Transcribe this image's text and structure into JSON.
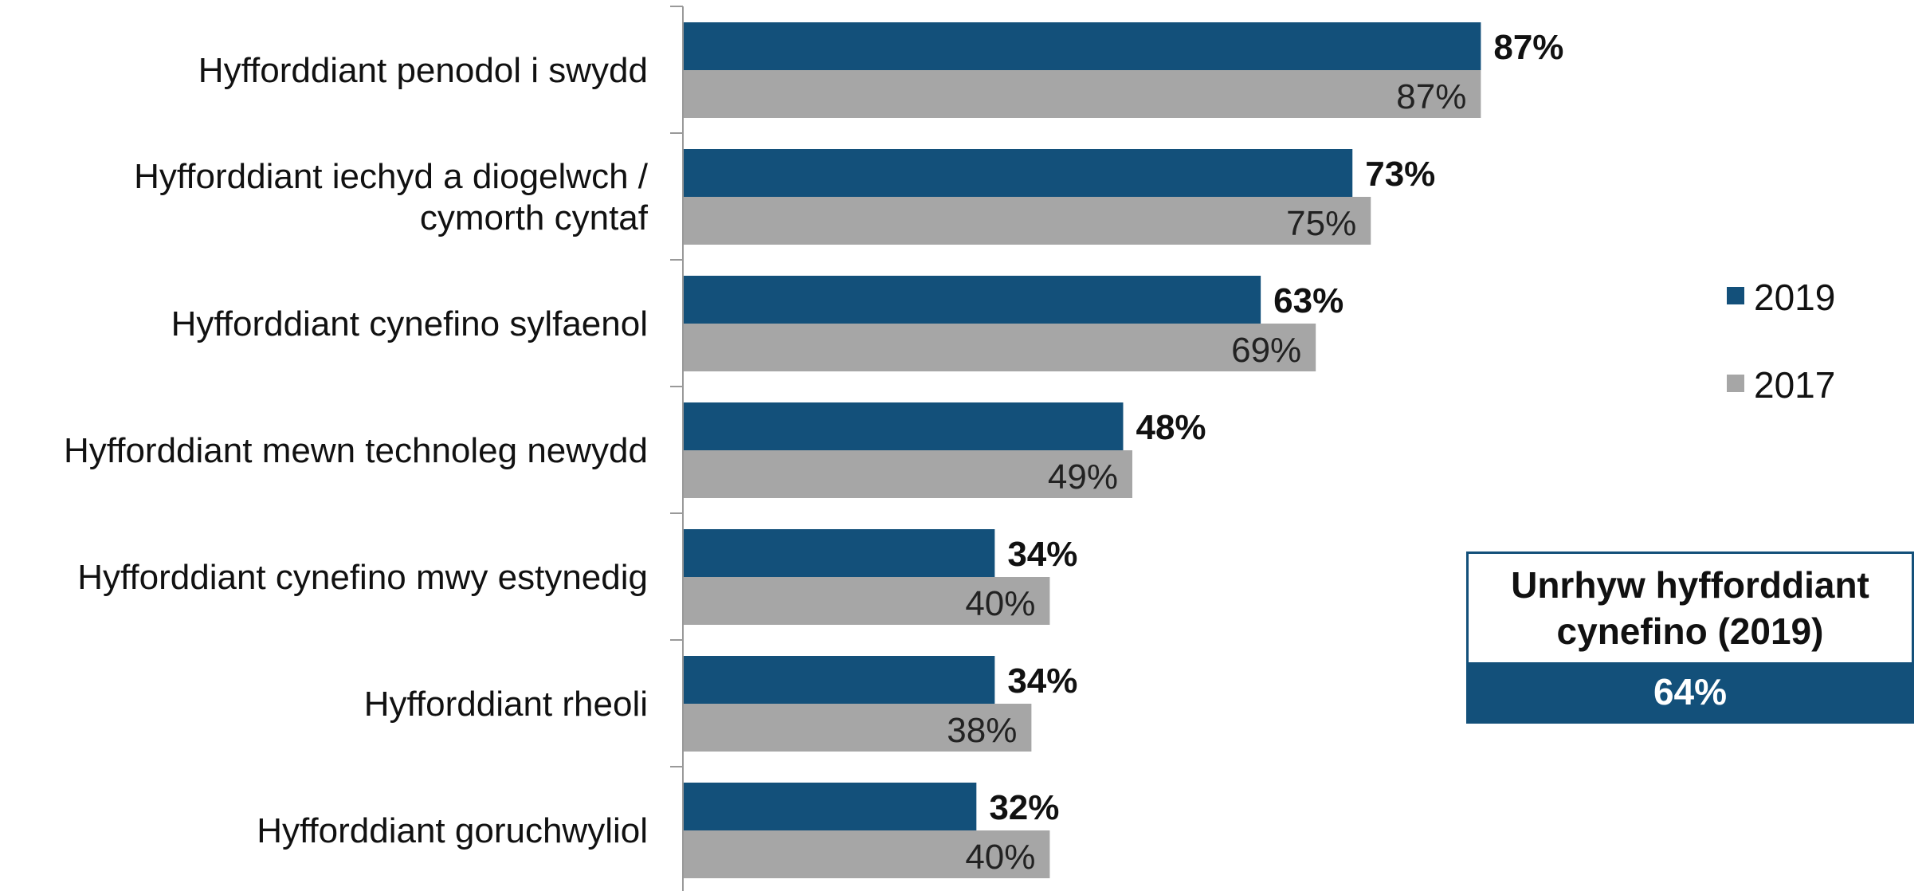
{
  "chart_data": {
    "type": "bar",
    "orientation": "horizontal",
    "categories": [
      [
        "Hyfforddiant penodol i swydd"
      ],
      [
        "Hyfforddiant iechyd a diogelwch /",
        "cymorth cyntaf"
      ],
      [
        "Hyfforddiant cynefino sylfaenol"
      ],
      [
        "Hyfforddiant mewn technoleg newydd"
      ],
      [
        "Hyfforddiant cynefino mwy estynedig"
      ],
      [
        "Hyfforddiant rheoli"
      ],
      [
        "Hyfforddiant goruchwyliol"
      ]
    ],
    "series": [
      {
        "name": "2019",
        "color": "#13507a",
        "values": [
          87,
          73,
          63,
          48,
          34,
          34,
          32
        ],
        "labels": [
          "87%",
          "73%",
          "63%",
          "48%",
          "34%",
          "34%",
          "32%"
        ]
      },
      {
        "name": "2017",
        "color": "#a6a6a6",
        "values": [
          87,
          75,
          69,
          49,
          40,
          38,
          40
        ],
        "labels": [
          "87%",
          "75%",
          "69%",
          "49%",
          "40%",
          "38%",
          "40%"
        ]
      }
    ],
    "xlim": [
      0,
      100
    ],
    "grid": false,
    "legend_position": "right"
  },
  "callout": {
    "title": "Unrhyw hyfforddiant cynefino (2019)",
    "value": "64%",
    "color": "#13507a"
  }
}
